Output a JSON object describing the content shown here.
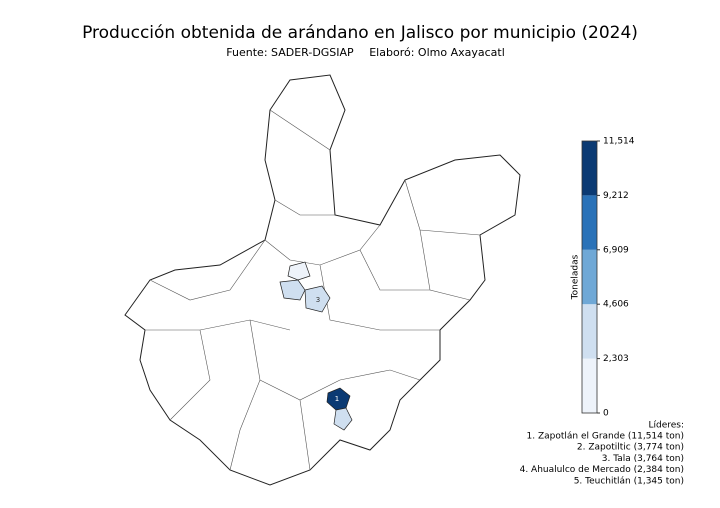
{
  "chart_data": {
    "type": "choropleth",
    "title": "Producción obtenida de arándano en Jalisco por municipio (2024)",
    "source": "Fuente: SADER-DGSIAP",
    "credit": "Elaboró: Olmo Axayacatl",
    "colorbar": {
      "label": "Toneladas",
      "clim": [
        0,
        11514
      ],
      "ticks": [
        0,
        {
          "value": 2303,
          "label": "2,303"
        },
        {
          "value": 4606,
          "label": "4,606"
        },
        {
          "value": 6909,
          "label": "6,909"
        },
        {
          "value": 9212,
          "label": "9,212"
        },
        {
          "value": 11514,
          "label": "11,514"
        }
      ],
      "colors": [
        "#eef3fa",
        "#cfdff0",
        "#6fa8d6",
        "#2a72b8",
        "#0b3a73"
      ]
    },
    "leaders_title": "Líderes:",
    "leaders": [
      {
        "label": "1. Zapotlán el Grande (11,514 ton)",
        "value": 11514,
        "map_label": "1"
      },
      {
        "label": "2. Zapotiltic (3,774 ton)",
        "value": 3774
      },
      {
        "label": "3. Tala (3,764 ton)",
        "value": 3764,
        "map_label": "3"
      },
      {
        "label": "4. Ahualulco de Mercado (2,384 ton)",
        "value": 2384
      },
      {
        "label": "5. Teuchitlán (1,345 ton)",
        "value": 1345
      }
    ]
  }
}
